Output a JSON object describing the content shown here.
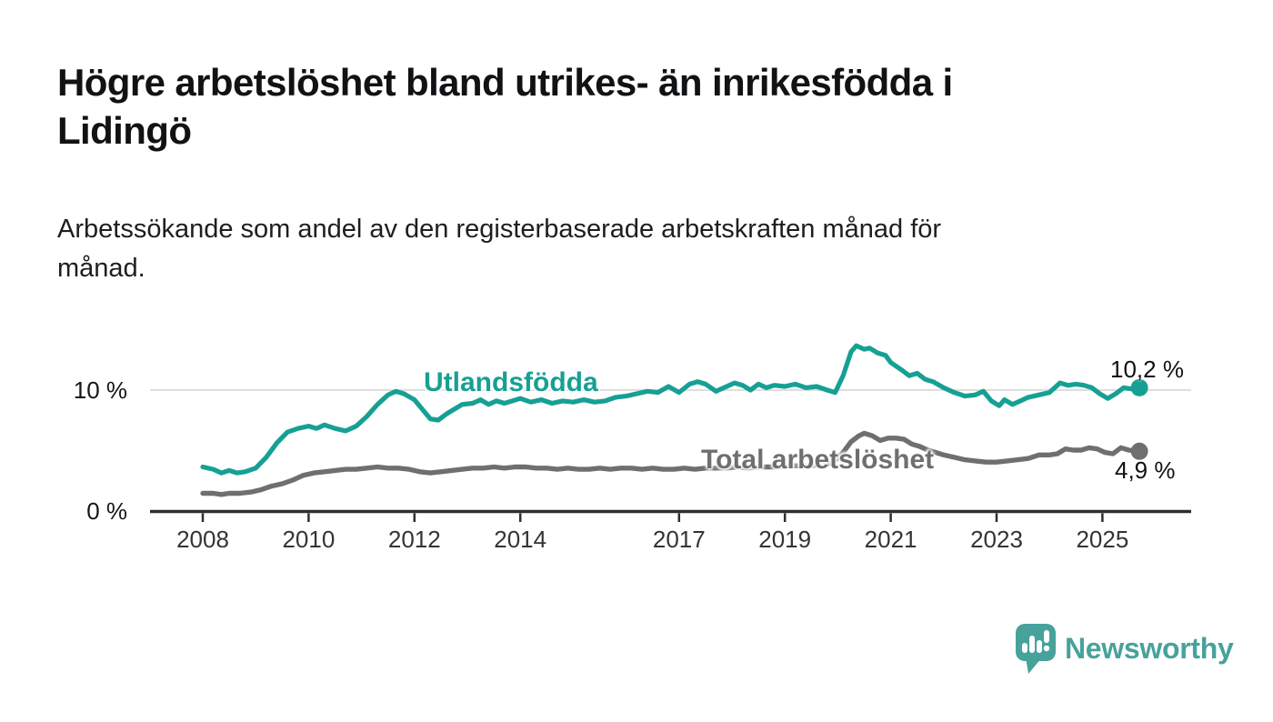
{
  "header": {
    "title_line1": "Högre arbetslöshet bland utrikes- än inrikesfödda i",
    "title_line2": "Lidingö",
    "subtitle_line1": "Arbetssökande som andel av den registerbaserade arbetskraften månad för",
    "subtitle_line2": "månad."
  },
  "footer": {
    "brand": "Newsworthy"
  },
  "colors": {
    "accent_teal": "#16A094",
    "line_gray": "#6F6F72",
    "brand_teal": "#47A29B",
    "grid": "#DEDEDE",
    "axis": "#2E2E2E"
  },
  "chart_data": {
    "type": "line",
    "title": "Högre arbetslöshet bland utrikes- än inrikesfödda i Lidingö",
    "subtitle": "Arbetssökande som andel av den registerbaserade arbetskraften månad för månad.",
    "unit": "%",
    "legend_position": "inline-labels",
    "grid": "horizontal, only at 10 %",
    "gridlines": [
      10
    ],
    "xlim": [
      2008,
      2025.7
    ],
    "ylim": [
      0,
      14.6
    ],
    "x_ticks": [
      2008,
      2010,
      2012,
      2014,
      2017,
      2019,
      2021,
      2023,
      2025
    ],
    "y_ticks": [
      {
        "value": 10,
        "label": "10 %"
      },
      {
        "value": 0,
        "label": "0 %"
      }
    ],
    "series": [
      {
        "name": "Utlandsfödda",
        "color": "#16A094",
        "end_label": "10,2 %",
        "end_value": 10.2,
        "points": [
          [
            2008.0,
            3.6
          ],
          [
            2008.2,
            3.4
          ],
          [
            2008.35,
            3.1
          ],
          [
            2008.5,
            3.3
          ],
          [
            2008.65,
            3.1
          ],
          [
            2008.8,
            3.2
          ],
          [
            2009.0,
            3.5
          ],
          [
            2009.2,
            4.4
          ],
          [
            2009.4,
            5.6
          ],
          [
            2009.6,
            6.5
          ],
          [
            2009.8,
            6.8
          ],
          [
            2010.0,
            7.0
          ],
          [
            2010.15,
            6.8
          ],
          [
            2010.3,
            7.1
          ],
          [
            2010.5,
            6.8
          ],
          [
            2010.7,
            6.6
          ],
          [
            2010.9,
            7.0
          ],
          [
            2011.1,
            7.8
          ],
          [
            2011.3,
            8.8
          ],
          [
            2011.5,
            9.6
          ],
          [
            2011.65,
            9.9
          ],
          [
            2011.8,
            9.7
          ],
          [
            2012.0,
            9.2
          ],
          [
            2012.15,
            8.4
          ],
          [
            2012.3,
            7.6
          ],
          [
            2012.45,
            7.5
          ],
          [
            2012.6,
            8.0
          ],
          [
            2012.75,
            8.4
          ],
          [
            2012.9,
            8.8
          ],
          [
            2013.1,
            8.9
          ],
          [
            2013.25,
            9.2
          ],
          [
            2013.4,
            8.8
          ],
          [
            2013.55,
            9.1
          ],
          [
            2013.7,
            8.9
          ],
          [
            2013.85,
            9.1
          ],
          [
            2014.0,
            9.3
          ],
          [
            2014.2,
            9.0
          ],
          [
            2014.4,
            9.2
          ],
          [
            2014.6,
            8.9
          ],
          [
            2014.8,
            9.1
          ],
          [
            2015.0,
            9.0
          ],
          [
            2015.2,
            9.2
          ],
          [
            2015.4,
            9.0
          ],
          [
            2015.6,
            9.1
          ],
          [
            2015.8,
            9.4
          ],
          [
            2016.0,
            9.5
          ],
          [
            2016.2,
            9.7
          ],
          [
            2016.4,
            9.9
          ],
          [
            2016.6,
            9.8
          ],
          [
            2016.8,
            10.3
          ],
          [
            2017.0,
            9.8
          ],
          [
            2017.2,
            10.5
          ],
          [
            2017.35,
            10.7
          ],
          [
            2017.5,
            10.5
          ],
          [
            2017.7,
            9.9
          ],
          [
            2017.9,
            10.3
          ],
          [
            2018.05,
            10.6
          ],
          [
            2018.2,
            10.4
          ],
          [
            2018.35,
            10.0
          ],
          [
            2018.5,
            10.5
          ],
          [
            2018.65,
            10.2
          ],
          [
            2018.8,
            10.4
          ],
          [
            2019.0,
            10.3
          ],
          [
            2019.2,
            10.5
          ],
          [
            2019.4,
            10.2
          ],
          [
            2019.6,
            10.3
          ],
          [
            2019.8,
            10.0
          ],
          [
            2019.95,
            9.8
          ],
          [
            2020.1,
            11.2
          ],
          [
            2020.25,
            13.2
          ],
          [
            2020.35,
            13.7
          ],
          [
            2020.5,
            13.4
          ],
          [
            2020.6,
            13.5
          ],
          [
            2020.75,
            13.1
          ],
          [
            2020.9,
            12.9
          ],
          [
            2021.0,
            12.3
          ],
          [
            2021.2,
            11.7
          ],
          [
            2021.35,
            11.2
          ],
          [
            2021.5,
            11.4
          ],
          [
            2021.65,
            10.9
          ],
          [
            2021.8,
            10.7
          ],
          [
            2022.0,
            10.2
          ],
          [
            2022.2,
            9.8
          ],
          [
            2022.4,
            9.5
          ],
          [
            2022.6,
            9.6
          ],
          [
            2022.75,
            9.9
          ],
          [
            2022.9,
            9.1
          ],
          [
            2023.05,
            8.7
          ],
          [
            2023.15,
            9.2
          ],
          [
            2023.3,
            8.8
          ],
          [
            2023.45,
            9.1
          ],
          [
            2023.6,
            9.4
          ],
          [
            2023.8,
            9.6
          ],
          [
            2024.0,
            9.8
          ],
          [
            2024.2,
            10.6
          ],
          [
            2024.35,
            10.4
          ],
          [
            2024.5,
            10.5
          ],
          [
            2024.65,
            10.4
          ],
          [
            2024.8,
            10.2
          ],
          [
            2024.95,
            9.7
          ],
          [
            2025.1,
            9.3
          ],
          [
            2025.25,
            9.7
          ],
          [
            2025.4,
            10.2
          ],
          [
            2025.55,
            10.1
          ],
          [
            2025.7,
            10.2
          ]
        ]
      },
      {
        "name": "Total arbetslöshet",
        "color": "#6F6F72",
        "end_label": "4,9 %",
        "end_value": 4.9,
        "points": [
          [
            2008.0,
            1.4
          ],
          [
            2008.2,
            1.4
          ],
          [
            2008.35,
            1.3
          ],
          [
            2008.5,
            1.4
          ],
          [
            2008.7,
            1.4
          ],
          [
            2008.9,
            1.5
          ],
          [
            2009.1,
            1.7
          ],
          [
            2009.3,
            2.0
          ],
          [
            2009.5,
            2.2
          ],
          [
            2009.7,
            2.5
          ],
          [
            2009.9,
            2.9
          ],
          [
            2010.1,
            3.1
          ],
          [
            2010.3,
            3.2
          ],
          [
            2010.5,
            3.3
          ],
          [
            2010.7,
            3.4
          ],
          [
            2010.9,
            3.4
          ],
          [
            2011.1,
            3.5
          ],
          [
            2011.3,
            3.6
          ],
          [
            2011.5,
            3.5
          ],
          [
            2011.7,
            3.5
          ],
          [
            2011.9,
            3.4
          ],
          [
            2012.1,
            3.2
          ],
          [
            2012.3,
            3.1
          ],
          [
            2012.5,
            3.2
          ],
          [
            2012.7,
            3.3
          ],
          [
            2012.9,
            3.4
          ],
          [
            2013.1,
            3.5
          ],
          [
            2013.3,
            3.5
          ],
          [
            2013.5,
            3.6
          ],
          [
            2013.7,
            3.5
          ],
          [
            2013.9,
            3.6
          ],
          [
            2014.1,
            3.6
          ],
          [
            2014.3,
            3.5
          ],
          [
            2014.5,
            3.5
          ],
          [
            2014.7,
            3.4
          ],
          [
            2014.9,
            3.5
          ],
          [
            2015.1,
            3.4
          ],
          [
            2015.3,
            3.4
          ],
          [
            2015.5,
            3.5
          ],
          [
            2015.7,
            3.4
          ],
          [
            2015.9,
            3.5
          ],
          [
            2016.1,
            3.5
          ],
          [
            2016.3,
            3.4
          ],
          [
            2016.5,
            3.5
          ],
          [
            2016.7,
            3.4
          ],
          [
            2016.9,
            3.4
          ],
          [
            2017.1,
            3.5
          ],
          [
            2017.3,
            3.4
          ],
          [
            2017.5,
            3.5
          ],
          [
            2017.7,
            3.5
          ],
          [
            2017.9,
            3.5
          ],
          [
            2018.1,
            3.6
          ],
          [
            2018.3,
            3.5
          ],
          [
            2018.5,
            3.6
          ],
          [
            2018.7,
            3.6
          ],
          [
            2018.9,
            3.6
          ],
          [
            2019.1,
            3.7
          ],
          [
            2019.3,
            3.7
          ],
          [
            2019.5,
            3.7
          ],
          [
            2019.7,
            3.8
          ],
          [
            2019.9,
            3.9
          ],
          [
            2020.1,
            4.8
          ],
          [
            2020.25,
            5.7
          ],
          [
            2020.4,
            6.2
          ],
          [
            2020.5,
            6.4
          ],
          [
            2020.65,
            6.2
          ],
          [
            2020.8,
            5.8
          ],
          [
            2020.95,
            6.0
          ],
          [
            2021.1,
            6.0
          ],
          [
            2021.25,
            5.9
          ],
          [
            2021.4,
            5.5
          ],
          [
            2021.55,
            5.3
          ],
          [
            2021.7,
            5.0
          ],
          [
            2021.85,
            4.8
          ],
          [
            2022.0,
            4.6
          ],
          [
            2022.2,
            4.4
          ],
          [
            2022.4,
            4.2
          ],
          [
            2022.6,
            4.1
          ],
          [
            2022.8,
            4.0
          ],
          [
            2023.0,
            4.0
          ],
          [
            2023.2,
            4.1
          ],
          [
            2023.4,
            4.2
          ],
          [
            2023.6,
            4.3
          ],
          [
            2023.8,
            4.6
          ],
          [
            2024.0,
            4.6
          ],
          [
            2024.15,
            4.7
          ],
          [
            2024.3,
            5.1
          ],
          [
            2024.45,
            5.0
          ],
          [
            2024.6,
            5.0
          ],
          [
            2024.75,
            5.2
          ],
          [
            2024.9,
            5.1
          ],
          [
            2025.05,
            4.8
          ],
          [
            2025.2,
            4.7
          ],
          [
            2025.35,
            5.2
          ],
          [
            2025.5,
            5.0
          ],
          [
            2025.7,
            4.9
          ]
        ]
      }
    ]
  }
}
